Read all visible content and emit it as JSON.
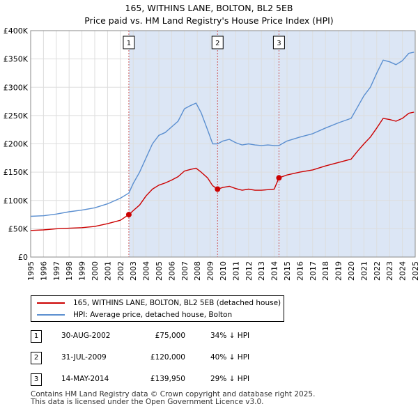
{
  "title": "165, WITHINS LANE, BOLTON, BL2 5EB",
  "subtitle": "Price paid vs. HM Land Registry's House Price Index (HPI)",
  "legend": {
    "property_label": "165, WITHINS LANE, BOLTON, BL2 5EB (detached house)",
    "hpi_label": "HPI: Average price, detached house, Bolton"
  },
  "transactions": [
    {
      "num": "1",
      "date": "30-AUG-2002",
      "price": "£75,000",
      "hpi": "34% ↓ HPI"
    },
    {
      "num": "2",
      "date": "31-JUL-2009",
      "price": "£120,000",
      "hpi": "40% ↓ HPI"
    },
    {
      "num": "3",
      "date": "14-MAY-2014",
      "price": "£139,950",
      "hpi": "29% ↓ HPI"
    }
  ],
  "footer": {
    "line1": "Contains HM Land Registry data © Crown copyright and database right 2025.",
    "line2": "This data is licensed under the Open Government Licence v3.0."
  },
  "colors": {
    "property": "#cc0000",
    "hpi": "#5b8fd0",
    "shade": "#dce6f5",
    "marker_line": "#cc5555"
  },
  "chart_data": {
    "type": "line",
    "title": "165, WITHINS LANE, BOLTON, BL2 5EB",
    "subtitle": "Price paid vs. HM Land Registry's House Price Index (HPI)",
    "xlim": [
      1995,
      2025
    ],
    "ylim": [
      0,
      400000
    ],
    "x_ticks": [
      1995,
      1996,
      1997,
      1998,
      1999,
      2000,
      2001,
      2002,
      2003,
      2004,
      2005,
      2006,
      2007,
      2008,
      2009,
      2010,
      2011,
      2012,
      2013,
      2014,
      2015,
      2016,
      2017,
      2018,
      2019,
      2020,
      2021,
      2022,
      2023,
      2024,
      2025
    ],
    "y_ticks": [
      0,
      50000,
      100000,
      150000,
      200000,
      250000,
      300000,
      350000,
      400000
    ],
    "y_tick_labels": [
      "£0",
      "£50K",
      "£100K",
      "£150K",
      "£200K",
      "£250K",
      "£300K",
      "£350K",
      "£400K"
    ],
    "sale_markers": [
      {
        "label": "1",
        "x": 2002.66,
        "y": 75000
      },
      {
        "label": "2",
        "x": 2009.58,
        "y": 120000
      },
      {
        "label": "3",
        "x": 2014.37,
        "y": 139950
      }
    ],
    "series": [
      {
        "name": "HPI: Average price, detached house, Bolton",
        "points": [
          [
            1995,
            72000
          ],
          [
            1996,
            73000
          ],
          [
            1997,
            76000
          ],
          [
            1998,
            80000
          ],
          [
            1999,
            83000
          ],
          [
            2000,
            87000
          ],
          [
            2001,
            94000
          ],
          [
            2002,
            104000
          ],
          [
            2002.66,
            113000
          ],
          [
            2003,
            130000
          ],
          [
            2003.5,
            150000
          ],
          [
            2004,
            175000
          ],
          [
            2004.5,
            200000
          ],
          [
            2005,
            215000
          ],
          [
            2005.5,
            220000
          ],
          [
            2006,
            230000
          ],
          [
            2006.5,
            240000
          ],
          [
            2007,
            262000
          ],
          [
            2007.5,
            268000
          ],
          [
            2007.9,
            272000
          ],
          [
            2008.3,
            255000
          ],
          [
            2008.8,
            225000
          ],
          [
            2009.2,
            200000
          ],
          [
            2009.58,
            200000
          ],
          [
            2010,
            205000
          ],
          [
            2010.5,
            208000
          ],
          [
            2011,
            202000
          ],
          [
            2011.5,
            198000
          ],
          [
            2012,
            200000
          ],
          [
            2012.5,
            198000
          ],
          [
            2013,
            197000
          ],
          [
            2013.5,
            198000
          ],
          [
            2014,
            197000
          ],
          [
            2014.37,
            197000
          ],
          [
            2015,
            205000
          ],
          [
            2016,
            212000
          ],
          [
            2017,
            218000
          ],
          [
            2018,
            228000
          ],
          [
            2019,
            237000
          ],
          [
            2020,
            245000
          ],
          [
            2020.5,
            265000
          ],
          [
            2021,
            285000
          ],
          [
            2021.5,
            300000
          ],
          [
            2022,
            325000
          ],
          [
            2022.5,
            348000
          ],
          [
            2023,
            345000
          ],
          [
            2023.5,
            340000
          ],
          [
            2024,
            347000
          ],
          [
            2024.5,
            360000
          ],
          [
            2024.9,
            362000
          ]
        ]
      },
      {
        "name": "165, WITHINS LANE, BOLTON, BL2 5EB (detached house)",
        "points": [
          [
            1995,
            47000
          ],
          [
            1996,
            48000
          ],
          [
            1997,
            50000
          ],
          [
            1998,
            51000
          ],
          [
            1999,
            52000
          ],
          [
            2000,
            54000
          ],
          [
            2001,
            59000
          ],
          [
            2002,
            65000
          ],
          [
            2002.66,
            75000
          ],
          [
            2003,
            82000
          ],
          [
            2003.5,
            92000
          ],
          [
            2004,
            108000
          ],
          [
            2004.5,
            120000
          ],
          [
            2005,
            127000
          ],
          [
            2005.5,
            131000
          ],
          [
            2006,
            136000
          ],
          [
            2006.5,
            142000
          ],
          [
            2007,
            152000
          ],
          [
            2007.5,
            155000
          ],
          [
            2007.9,
            157000
          ],
          [
            2008.3,
            150000
          ],
          [
            2008.8,
            140000
          ],
          [
            2009.2,
            126000
          ],
          [
            2009.58,
            120000
          ],
          [
            2010,
            123000
          ],
          [
            2010.5,
            125000
          ],
          [
            2011,
            121000
          ],
          [
            2011.5,
            118000
          ],
          [
            2012,
            120000
          ],
          [
            2012.5,
            118000
          ],
          [
            2013,
            118000
          ],
          [
            2013.5,
            119000
          ],
          [
            2014,
            120000
          ],
          [
            2014.37,
            139950
          ],
          [
            2015,
            145000
          ],
          [
            2016,
            150000
          ],
          [
            2017,
            154000
          ],
          [
            2018,
            161000
          ],
          [
            2019,
            167000
          ],
          [
            2020,
            173000
          ],
          [
            2020.5,
            187000
          ],
          [
            2021,
            200000
          ],
          [
            2021.5,
            212000
          ],
          [
            2022,
            228000
          ],
          [
            2022.5,
            245000
          ],
          [
            2023,
            243000
          ],
          [
            2023.5,
            240000
          ],
          [
            2024,
            245000
          ],
          [
            2024.5,
            254000
          ],
          [
            2024.9,
            256000
          ]
        ]
      }
    ]
  }
}
